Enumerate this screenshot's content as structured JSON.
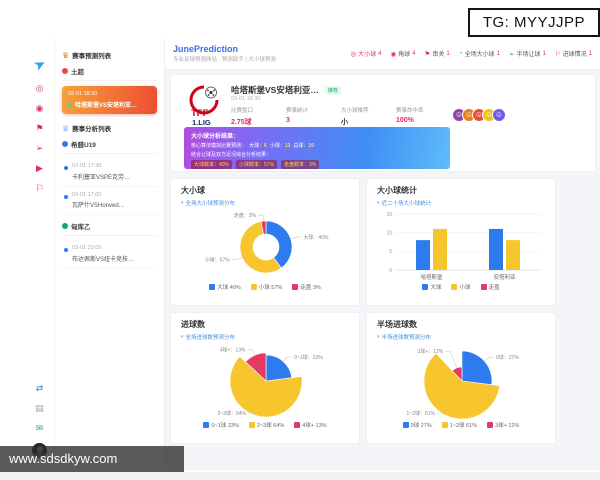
{
  "watermarks": {
    "top": "TG: MYYJJPP",
    "bottom": "www.sdsdkyw.com"
  },
  "brand": {
    "title": "JunePrediction",
    "subtitle": "专业足球预测网站 · 预测助手 | 大小球预测"
  },
  "topnav": {
    "items": [
      {
        "name": "over-under",
        "icon": "◎",
        "icon_color": "#e0315b",
        "label": "大小球",
        "label_color": "#e0315b",
        "count": "4"
      },
      {
        "name": "corner",
        "icon": "◉",
        "icon_color": "#e0315b",
        "label": "角球",
        "label_color": "#555555",
        "count": "4"
      },
      {
        "name": "parlay",
        "icon": "⚑",
        "icon_color": "#e0315b",
        "label": "串关",
        "label_color": "#555555",
        "count": "1"
      },
      {
        "name": "full-over-under",
        "icon": "◔",
        "icon_color": "#2e7bf0",
        "label": "全场大小球",
        "label_color": "#555555",
        "count": "1"
      },
      {
        "name": "half-handicap",
        "icon": "➢",
        "icon_color": "#16a085",
        "label": "半场让球",
        "label_color": "#555555",
        "count": "1"
      },
      {
        "name": "goal-status",
        "icon": "⚐",
        "icon_color": "#e0315b",
        "label": "进球情况",
        "label_color": "#555555",
        "count": "1"
      }
    ]
  },
  "rail": {
    "top": {
      "name": "telegram-plane-icon",
      "glyph": "➤",
      "color": "#2ea3e6"
    },
    "middle": [
      {
        "name": "over-under-icon",
        "glyph": "◎",
        "color": "#e0315b"
      },
      {
        "name": "corner-icon",
        "glyph": "◉",
        "color": "#e0315b"
      },
      {
        "name": "parlay-flag-icon",
        "glyph": "⚑",
        "color": "#e0315b"
      },
      {
        "name": "full-ou-icon",
        "glyph": "➢",
        "color": "#e0315b"
      },
      {
        "name": "half-handicap-icon",
        "glyph": "▶",
        "color": "#e0315b"
      },
      {
        "name": "goal-status-icon",
        "glyph": "⚐",
        "color": "#e0315b"
      }
    ],
    "bottom": [
      {
        "name": "shuffle-icon",
        "glyph": "⇄",
        "color": "#2e7bf0"
      },
      {
        "name": "file-icon",
        "glyph": "▤",
        "color": "#98a2b3"
      },
      {
        "name": "message-icon",
        "glyph": "✉",
        "color": "#27ae60"
      }
    ]
  },
  "sidebar": {
    "prediction": {
      "header": "赛事预测列表",
      "league": "土超",
      "league_color": "#e74c3c",
      "active": {
        "time": "03-01 18:30",
        "match": "哈塔斯堡VS安塔利亚…"
      }
    },
    "analysis": {
      "header": "赛事分析列表",
      "groups": [
        {
          "league": "希腊U19",
          "color": "#2e7bf0",
          "items": [
            {
              "time": "03-01 17:30",
              "match": "卡利塞亚VSPE克劳…"
            },
            {
              "time": "03-01 17:00",
              "match": "瓦萨什VSHonved…"
            }
          ]
        },
        {
          "league": "匈库乙",
          "color": "#16a085",
          "items": [
            {
              "time": "03-01 23:00",
              "match": "布达佩斯VS纽卡竞技…"
            }
          ]
        }
      ]
    }
  },
  "match": {
    "logo_line1": "TFF",
    "logo_line2": "1.LIG",
    "title": "哈塔斯堡VS安塔利亚…",
    "tag": "推荐",
    "time": "03-01 18:30",
    "stats": [
      {
        "label": "比赛盘口",
        "value": "2.75球",
        "color": "#e0315b"
      },
      {
        "label": "赛事统计",
        "value": "3",
        "color": "#e0315b"
      },
      {
        "label": "大小球推荐",
        "value": "小",
        "color": "#333333"
      },
      {
        "label": "赛事命中率",
        "value": "100%",
        "color": "#e0315b"
      }
    ],
    "avatars": [
      "#8e44ad",
      "#e67e22",
      "#e74c3c",
      "#f1c40f",
      "#6c5ce7"
    ],
    "banner": {
      "line1": "大小球分析结果：",
      "line2_label": "核心算法模拟比赛预测：",
      "line2_chips": [
        {
          "k": "大球",
          "v": "6"
        },
        {
          "k": "小球",
          "v": "13"
        },
        {
          "k": "总球",
          "v": "19"
        }
      ],
      "line3": "结合让球及双方近况综合分析结果：",
      "line4_chips": [
        "大球概率：40%",
        "小球概率：57%",
        "走盘概率：3%"
      ]
    }
  },
  "chart_data": [
    {
      "id": "full-over-under",
      "type": "pie",
      "donut": true,
      "title": "大小球",
      "subtitle": "全场大小球预测分布",
      "legend_position": "bottom",
      "slices": [
        {
          "name": "大球",
          "value": 40,
          "color": "#2e7bf0",
          "r": 26
        },
        {
          "name": "小球",
          "value": 57,
          "color": "#f7c52e",
          "r": 26
        },
        {
          "name": "走盘",
          "value": 3,
          "color": "#e23a63",
          "r": 26
        }
      ]
    },
    {
      "id": "over-under-stats",
      "type": "bar",
      "title": "大小球统计",
      "subtitle": "近二十场大小球统计",
      "categories": [
        "哈塔斯堡",
        "安塔利亚"
      ],
      "series": [
        {
          "name": "大球",
          "color": "#2e7bf0",
          "values": [
            8,
            11
          ]
        },
        {
          "name": "小球",
          "color": "#f7c52e",
          "values": [
            11,
            8
          ]
        },
        {
          "name": "走盘",
          "color": "#e23a63",
          "values": [
            0,
            0
          ]
        }
      ],
      "ylim": [
        0,
        15
      ],
      "yticks": [
        0,
        5,
        10,
        15
      ],
      "grid": true,
      "legend_position": "bottom"
    },
    {
      "id": "full-goals",
      "type": "pie",
      "donut": false,
      "title": "进球数",
      "subtitle": "全场进球数预测分布",
      "legend_position": "bottom",
      "slices": [
        {
          "name": "0~1球",
          "value": 23,
          "color": "#2e7bf0",
          "r": 26
        },
        {
          "name": "2~3球",
          "value": 64,
          "color": "#f7c52e",
          "r": 36
        },
        {
          "name": "4球+",
          "value": 13,
          "color": "#e23a63",
          "r": 28
        }
      ]
    },
    {
      "id": "half-goals",
      "type": "pie",
      "donut": false,
      "title": "半场进球数",
      "subtitle": "半场进球数预测分布",
      "legend_position": "bottom",
      "slices": [
        {
          "name": "0球",
          "value": 27,
          "color": "#2e7bf0",
          "r": 30
        },
        {
          "name": "1~2球",
          "value": 61,
          "color": "#f7c52e",
          "r": 38
        },
        {
          "name": "3球+",
          "value": 12,
          "color": "#e23a63",
          "r": 14
        }
      ]
    }
  ]
}
